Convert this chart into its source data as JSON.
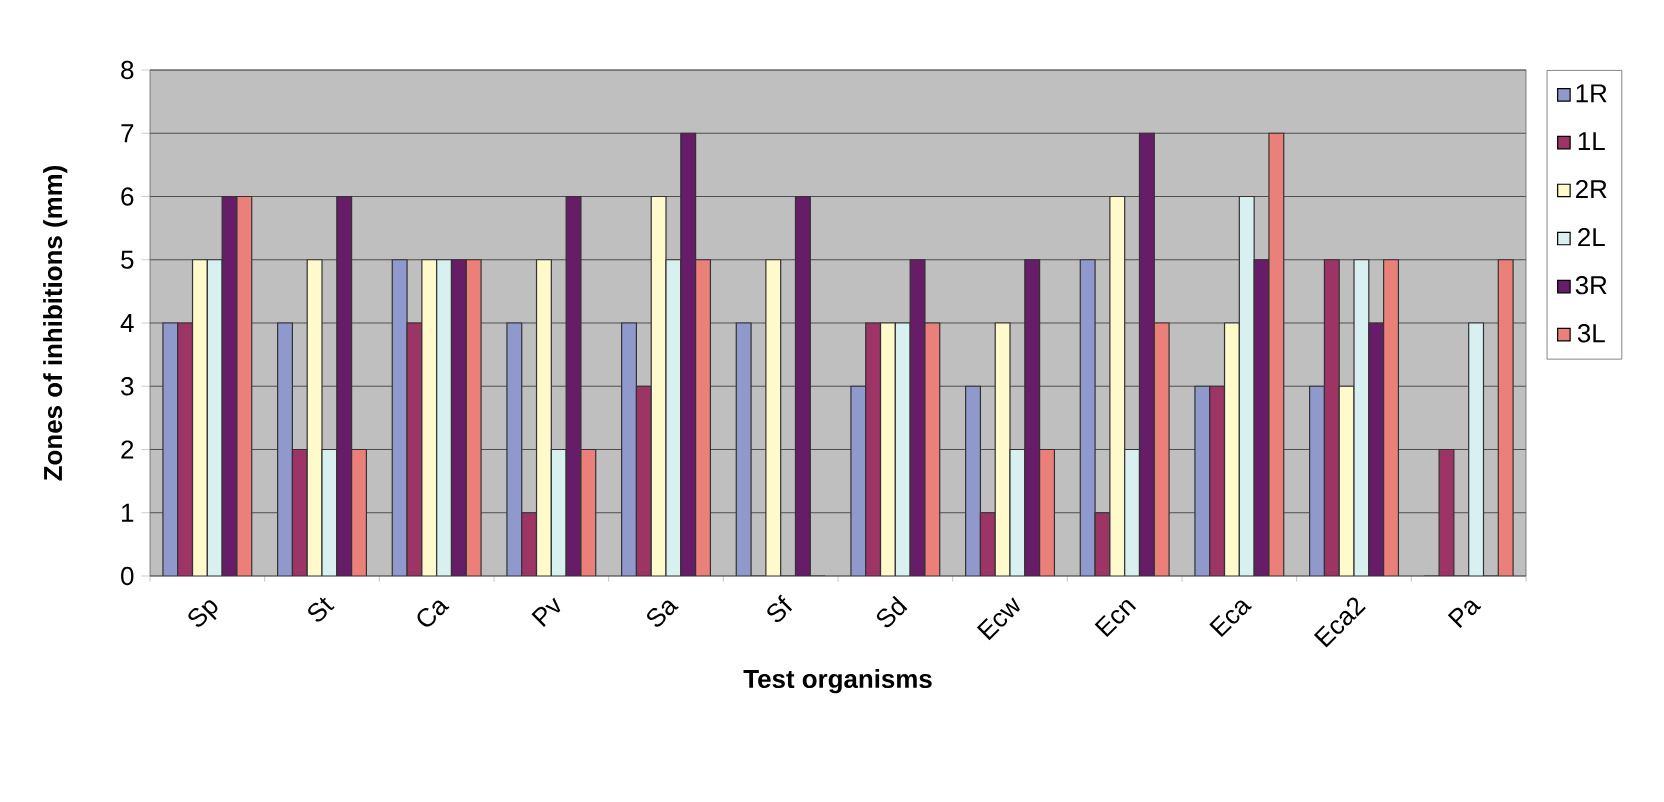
{
  "chart_data": {
    "type": "bar",
    "xlabel": "Test organisms",
    "ylabel": "Zones of inhibitions (mm)",
    "categories": [
      "Sp",
      "St",
      "Ca",
      "Pv",
      "Sa",
      "Sf",
      "Sd",
      "Ecw",
      "Ecn",
      "Eca",
      "Eca2",
      "Pa"
    ],
    "series": [
      {
        "name": "1R",
        "color": "#9099cc",
        "values": [
          4,
          4,
          5,
          4,
          4,
          4,
          3,
          3,
          5,
          3,
          3,
          0
        ]
      },
      {
        "name": "1L",
        "color": "#9c3466",
        "values": [
          4,
          2,
          4,
          1,
          3,
          0,
          4,
          1,
          1,
          3,
          5,
          2
        ]
      },
      {
        "name": "2R",
        "color": "#fffacc",
        "values": [
          5,
          5,
          5,
          5,
          6,
          5,
          4,
          4,
          6,
          4,
          3,
          0
        ]
      },
      {
        "name": "2L",
        "color": "#d8f0f0",
        "values": [
          5,
          2,
          5,
          2,
          5,
          0,
          4,
          2,
          2,
          6,
          5,
          4
        ]
      },
      {
        "name": "3R",
        "color": "#661c66",
        "values": [
          6,
          6,
          5,
          6,
          7,
          6,
          5,
          5,
          7,
          5,
          4,
          0
        ]
      },
      {
        "name": "3L",
        "color": "#eb807a",
        "values": [
          6,
          2,
          5,
          2,
          5,
          0,
          4,
          2,
          4,
          7,
          5,
          5
        ]
      }
    ],
    "ylim": [
      0,
      8
    ],
    "yticks": [
      0,
      1,
      2,
      3,
      4,
      5,
      6,
      7,
      8
    ],
    "grid": "y",
    "legend": "right"
  }
}
